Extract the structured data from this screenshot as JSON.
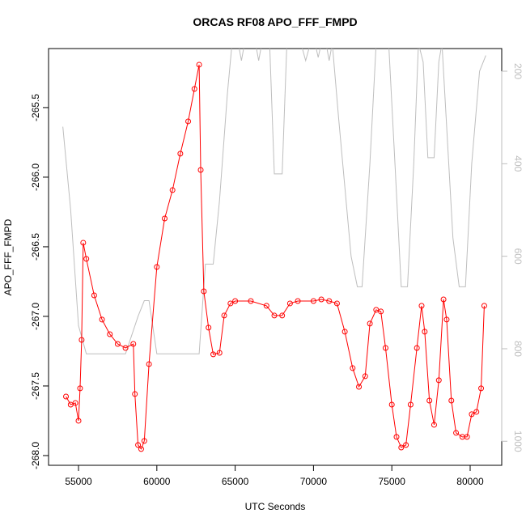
{
  "chart_data": {
    "type": "scatter-line",
    "title": "ORCAS RF08 APO_FFF_FMPD",
    "x_label": "UTC Seconds",
    "y_label": "APO_FFF_FMPD",
    "xlim": [
      53088,
      82015
    ],
    "xticks": [
      55000,
      60000,
      65000,
      70000,
      75000,
      80000
    ],
    "ylim": [
      -268.07,
      -265.076
    ],
    "yticks": [
      {
        "value": -268,
        "label": "-268.0"
      },
      -267.5,
      {
        "value": -267,
        "label": "-267.0"
      },
      -266.5,
      {
        "value": -266,
        "label": "-266.0"
      },
      -265.5
    ],
    "y2lim": [
      1052,
      151
    ],
    "y2ticks": [
      200,
      400,
      600,
      800,
      1000
    ],
    "y2_color": "#bebebe",
    "series": [
      {
        "color": "#ff0000",
        "x": [
          54200,
          54500,
          54800,
          55000,
          55100,
          55200,
          55300,
          55500,
          56000,
          56500,
          57000,
          57500,
          58000,
          58500,
          58600,
          58800,
          59000,
          59200,
          59500,
          60000,
          60500,
          61000,
          61500,
          62000,
          62400,
          62700,
          62800,
          63000,
          63300,
          63600,
          64000,
          64300,
          64700,
          65000,
          66000,
          67000,
          67500,
          68000,
          68500,
          69000,
          70000,
          70500,
          71000,
          71500,
          72000,
          72500,
          72900,
          73300,
          73600,
          74000,
          74300,
          74600,
          75000,
          75300,
          75600,
          75900,
          76200,
          76600,
          76900,
          77100,
          77400,
          77700,
          78000,
          78300,
          78500,
          78800,
          79100,
          79500,
          79800,
          80100,
          80400,
          80700,
          80900
        ],
        "values": [
          -267.576,
          -267.634,
          -267.622,
          -267.75,
          -267.517,
          -267.169,
          -266.471,
          -266.587,
          -266.849,
          -267.023,
          -267.128,
          -267.198,
          -267.227,
          -267.198,
          -267.558,
          -267.924,
          -267.953,
          -267.895,
          -267.343,
          -266.645,
          -266.297,
          -266.093,
          -265.831,
          -265.599,
          -265.366,
          -265.192,
          -265.948,
          -266.82,
          -267.081,
          -267.273,
          -267.262,
          -266.994,
          -266.907,
          -266.89,
          -266.89,
          -266.924,
          -266.994,
          -266.994,
          -266.907,
          -266.89,
          -266.89,
          -266.878,
          -266.89,
          -266.907,
          -267.11,
          -267.372,
          -267.506,
          -267.43,
          -267.052,
          -266.953,
          -266.965,
          -267.227,
          -267.634,
          -267.866,
          -267.942,
          -267.924,
          -267.634,
          -267.227,
          -266.924,
          -267.11,
          -267.605,
          -267.779,
          -267.459,
          -266.878,
          -267.023,
          -267.605,
          -267.837,
          -267.866,
          -267.866,
          -267.703,
          -267.686,
          -267.517,
          -266.924
        ]
      },
      {
        "color": "#bebebe",
        "axis": "y2",
        "x": [
          54000,
          54500,
          55000,
          55500,
          56000,
          58000,
          58800,
          59200,
          59500,
          60000,
          62700,
          63100,
          63600,
          64000,
          64500,
          64800,
          65200,
          65400,
          65600,
          66300,
          66500,
          66700,
          67200,
          67500,
          68000,
          68300,
          69200,
          69500,
          69800,
          70100,
          70300,
          70500,
          70800,
          71000,
          71200,
          71600,
          72400,
          72800,
          73100,
          73600,
          74000,
          74800,
          75200,
          75600,
          76000,
          76400,
          76700,
          77000,
          77300,
          77700,
          78000,
          78200,
          78400,
          78900,
          79300,
          79700,
          80100,
          80600,
          81000
        ],
        "values": [
          320,
          500,
          750,
          811,
          811,
          811,
          730,
          696,
          696,
          811,
          811,
          617,
          617,
          480,
          250,
          140,
          140,
          177,
          140,
          140,
          177,
          140,
          140,
          422,
          422,
          140,
          140,
          177,
          140,
          140,
          170,
          140,
          140,
          177,
          140,
          300,
          600,
          666,
          666,
          400,
          140,
          140,
          400,
          666,
          666,
          400,
          140,
          180,
          387,
          387,
          180,
          140,
          260,
          560,
          666,
          666,
          400,
          200,
          166
        ]
      }
    ]
  }
}
